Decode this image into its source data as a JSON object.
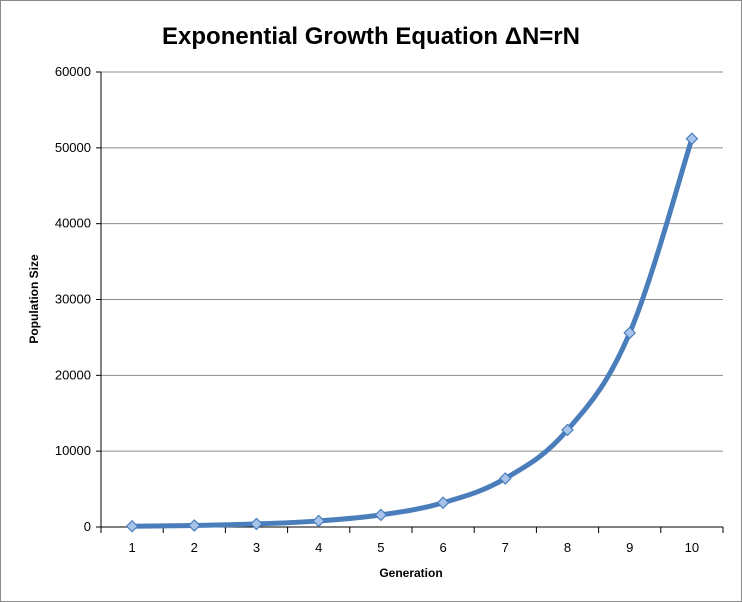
{
  "chart_data": {
    "type": "line",
    "title": "Exponential Growth Equation ΔN=rN",
    "xlabel": "Generation",
    "ylabel": "Population  Size",
    "categories": [
      "1",
      "2",
      "3",
      "4",
      "5",
      "6",
      "7",
      "8",
      "9",
      "10"
    ],
    "y_ticks": [
      "0",
      "10000",
      "20000",
      "30000",
      "40000",
      "50000",
      "60000"
    ],
    "ylim": [
      0,
      60000
    ],
    "grid": true,
    "legend": "none",
    "series": [
      {
        "values": [
          100,
          200,
          400,
          800,
          1600,
          3200,
          6400,
          12800,
          25600,
          51200
        ]
      }
    ],
    "colors": {
      "line": "#4a7ebb",
      "marker_fill": "#a9c4eb",
      "marker_stroke": "#4a7ebb",
      "grid": "#8c8c8c",
      "axis": "#000000"
    }
  }
}
